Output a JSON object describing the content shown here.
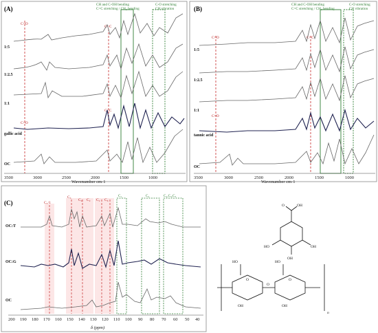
{
  "panelA": {
    "label": "(A)",
    "rows": [
      "1:5",
      "1:2.5",
      "1:1",
      "gallic acid",
      "OC"
    ],
    "ticks": [
      "3500",
      "3000",
      "2500",
      "2000",
      "1500",
      "1000"
    ],
    "xlabel": "Wavenumber cm-1",
    "ann1": "CH and C-OH bending",
    "ann2": "C=C stretching / CH₂ bending",
    "ann3": "C-O stretching",
    "ann4": "CH vibration",
    "co": "C=O",
    "cc": "C=C"
  },
  "panelB": {
    "label": "(B)",
    "rows": [
      "1:5",
      "1:2.5",
      "1:1",
      "tannic acid",
      "OC"
    ],
    "ticks": [
      "3500",
      "3000",
      "2500",
      "2000",
      "1500",
      "1000"
    ],
    "xlabel": "Wavenumber cm-1",
    "ann1": "CH and C-OH bending",
    "ann2": "C=C stretching / CH₂ bending",
    "ann3": "C-O stretching",
    "ann4": "CH vibration",
    "co": "C=O",
    "cc": "C=C"
  },
  "panelC": {
    "label": "(C)",
    "rows": [
      "OC:T",
      "OC:G",
      "OC"
    ],
    "peaks": [
      "C₇/1",
      "C₃",
      "C₄",
      "C₂",
      "C₂",
      "C₆",
      "C₁",
      "C₄",
      "C₂,C₃,C₅"
    ],
    "ticks": [
      "200",
      "190",
      "180",
      "170",
      "160",
      "150",
      "140",
      "130",
      "120",
      "110",
      "100",
      "90",
      "80",
      "70",
      "60",
      "50",
      "40"
    ],
    "xlabel": "δ (ppm)"
  },
  "structures": {
    "atoms_top": [
      "O",
      "OH",
      "HO",
      "OH",
      "OH"
    ],
    "atoms_bottom": [
      "HO",
      "HO",
      "O",
      "O",
      "OH",
      "OH",
      "O"
    ],
    "subscript": "n"
  }
}
